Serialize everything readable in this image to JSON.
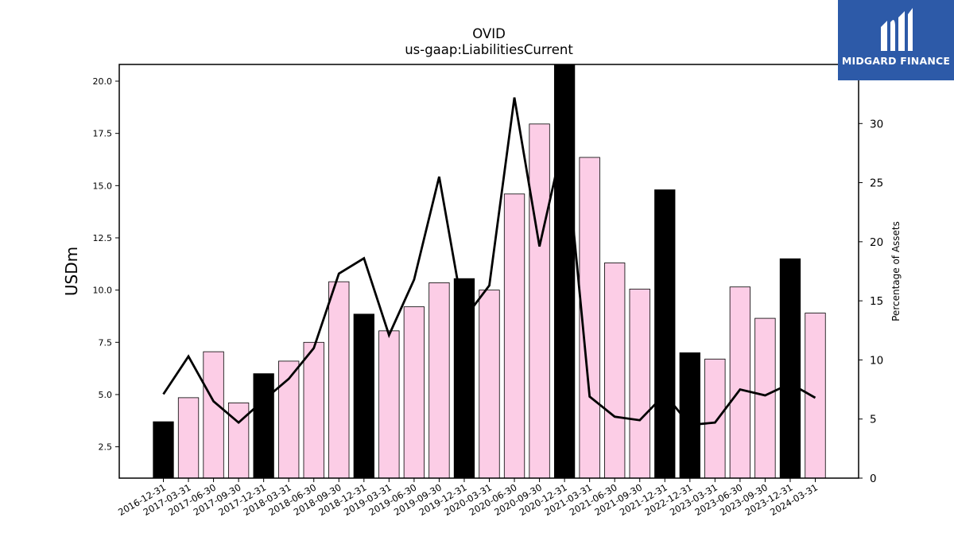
{
  "chart_data": {
    "type": "bar",
    "title": "OVID",
    "subtitle": "us-gaap:LiabilitiesCurrent",
    "ylabel": "USDm",
    "y2label": "Percentage of Assets",
    "ylim": [
      1.0,
      20.8
    ],
    "y2lim": [
      0,
      35
    ],
    "yticks": [
      "2.5",
      "5.0",
      "7.5",
      "10.0",
      "12.5",
      "15.0",
      "17.5",
      "20.0"
    ],
    "y2ticks": [
      "0",
      "5",
      "10",
      "15",
      "20",
      "25",
      "30"
    ],
    "categories": [
      "2016-12-31",
      "2017-03-31",
      "2017-06-30",
      "2017-09-30",
      "2017-12-31",
      "2018-03-31",
      "2018-06-30",
      "2018-09-30",
      "2018-12-31",
      "2019-03-31",
      "2019-06-30",
      "2019-09-30",
      "2019-12-31",
      "2020-03-31",
      "2020-06-30",
      "2020-09-30",
      "2020-12-31",
      "2021-03-31",
      "2021-06-30",
      "2021-09-30",
      "2021-12-31",
      "2022-12-31",
      "2023-03-31",
      "2023-06-30",
      "2023-09-30",
      "2023-12-31",
      "2024-03-31"
    ],
    "series": [
      {
        "type": "bar",
        "values": [
          3.7,
          4.85,
          7.05,
          4.6,
          6.0,
          6.6,
          7.5,
          10.4,
          8.85,
          8.05,
          9.2,
          10.35,
          10.55,
          10.0,
          14.6,
          17.95,
          20.8,
          16.35,
          11.3,
          10.05,
          14.8,
          7.0,
          6.7,
          10.15,
          8.65,
          11.5,
          8.9
        ],
        "colors": [
          "#000000",
          "#fccde6",
          "#fccde6",
          "#fccde6",
          "#000000",
          "#fccde6",
          "#fccde6",
          "#fccde6",
          "#000000",
          "#fccde6",
          "#fccde6",
          "#fccde6",
          "#000000",
          "#fccde6",
          "#fccde6",
          "#fccde6",
          "#000000",
          "#fccde6",
          "#fccde6",
          "#fccde6",
          "#000000",
          "#000000",
          "#fccde6",
          "#fccde6",
          "#fccde6",
          "#000000",
          "#fccde6"
        ]
      },
      {
        "type": "line",
        "axis": "right",
        "color": "#000000",
        "values": [
          7.1,
          10.3,
          6.5,
          4.7,
          6.6,
          8.4,
          11.0,
          17.3,
          18.6,
          12.1,
          16.8,
          25.5,
          13.5,
          16.3,
          32.2,
          19.6,
          29.0,
          6.9,
          5.2,
          4.9,
          7.1,
          4.5,
          4.7,
          7.5,
          7.0,
          8.0,
          6.8
        ]
      }
    ],
    "grid": false,
    "legend": "none"
  },
  "logo": {
    "text": "MIDGARD FINANCE",
    "background": "#2d5aa8"
  }
}
